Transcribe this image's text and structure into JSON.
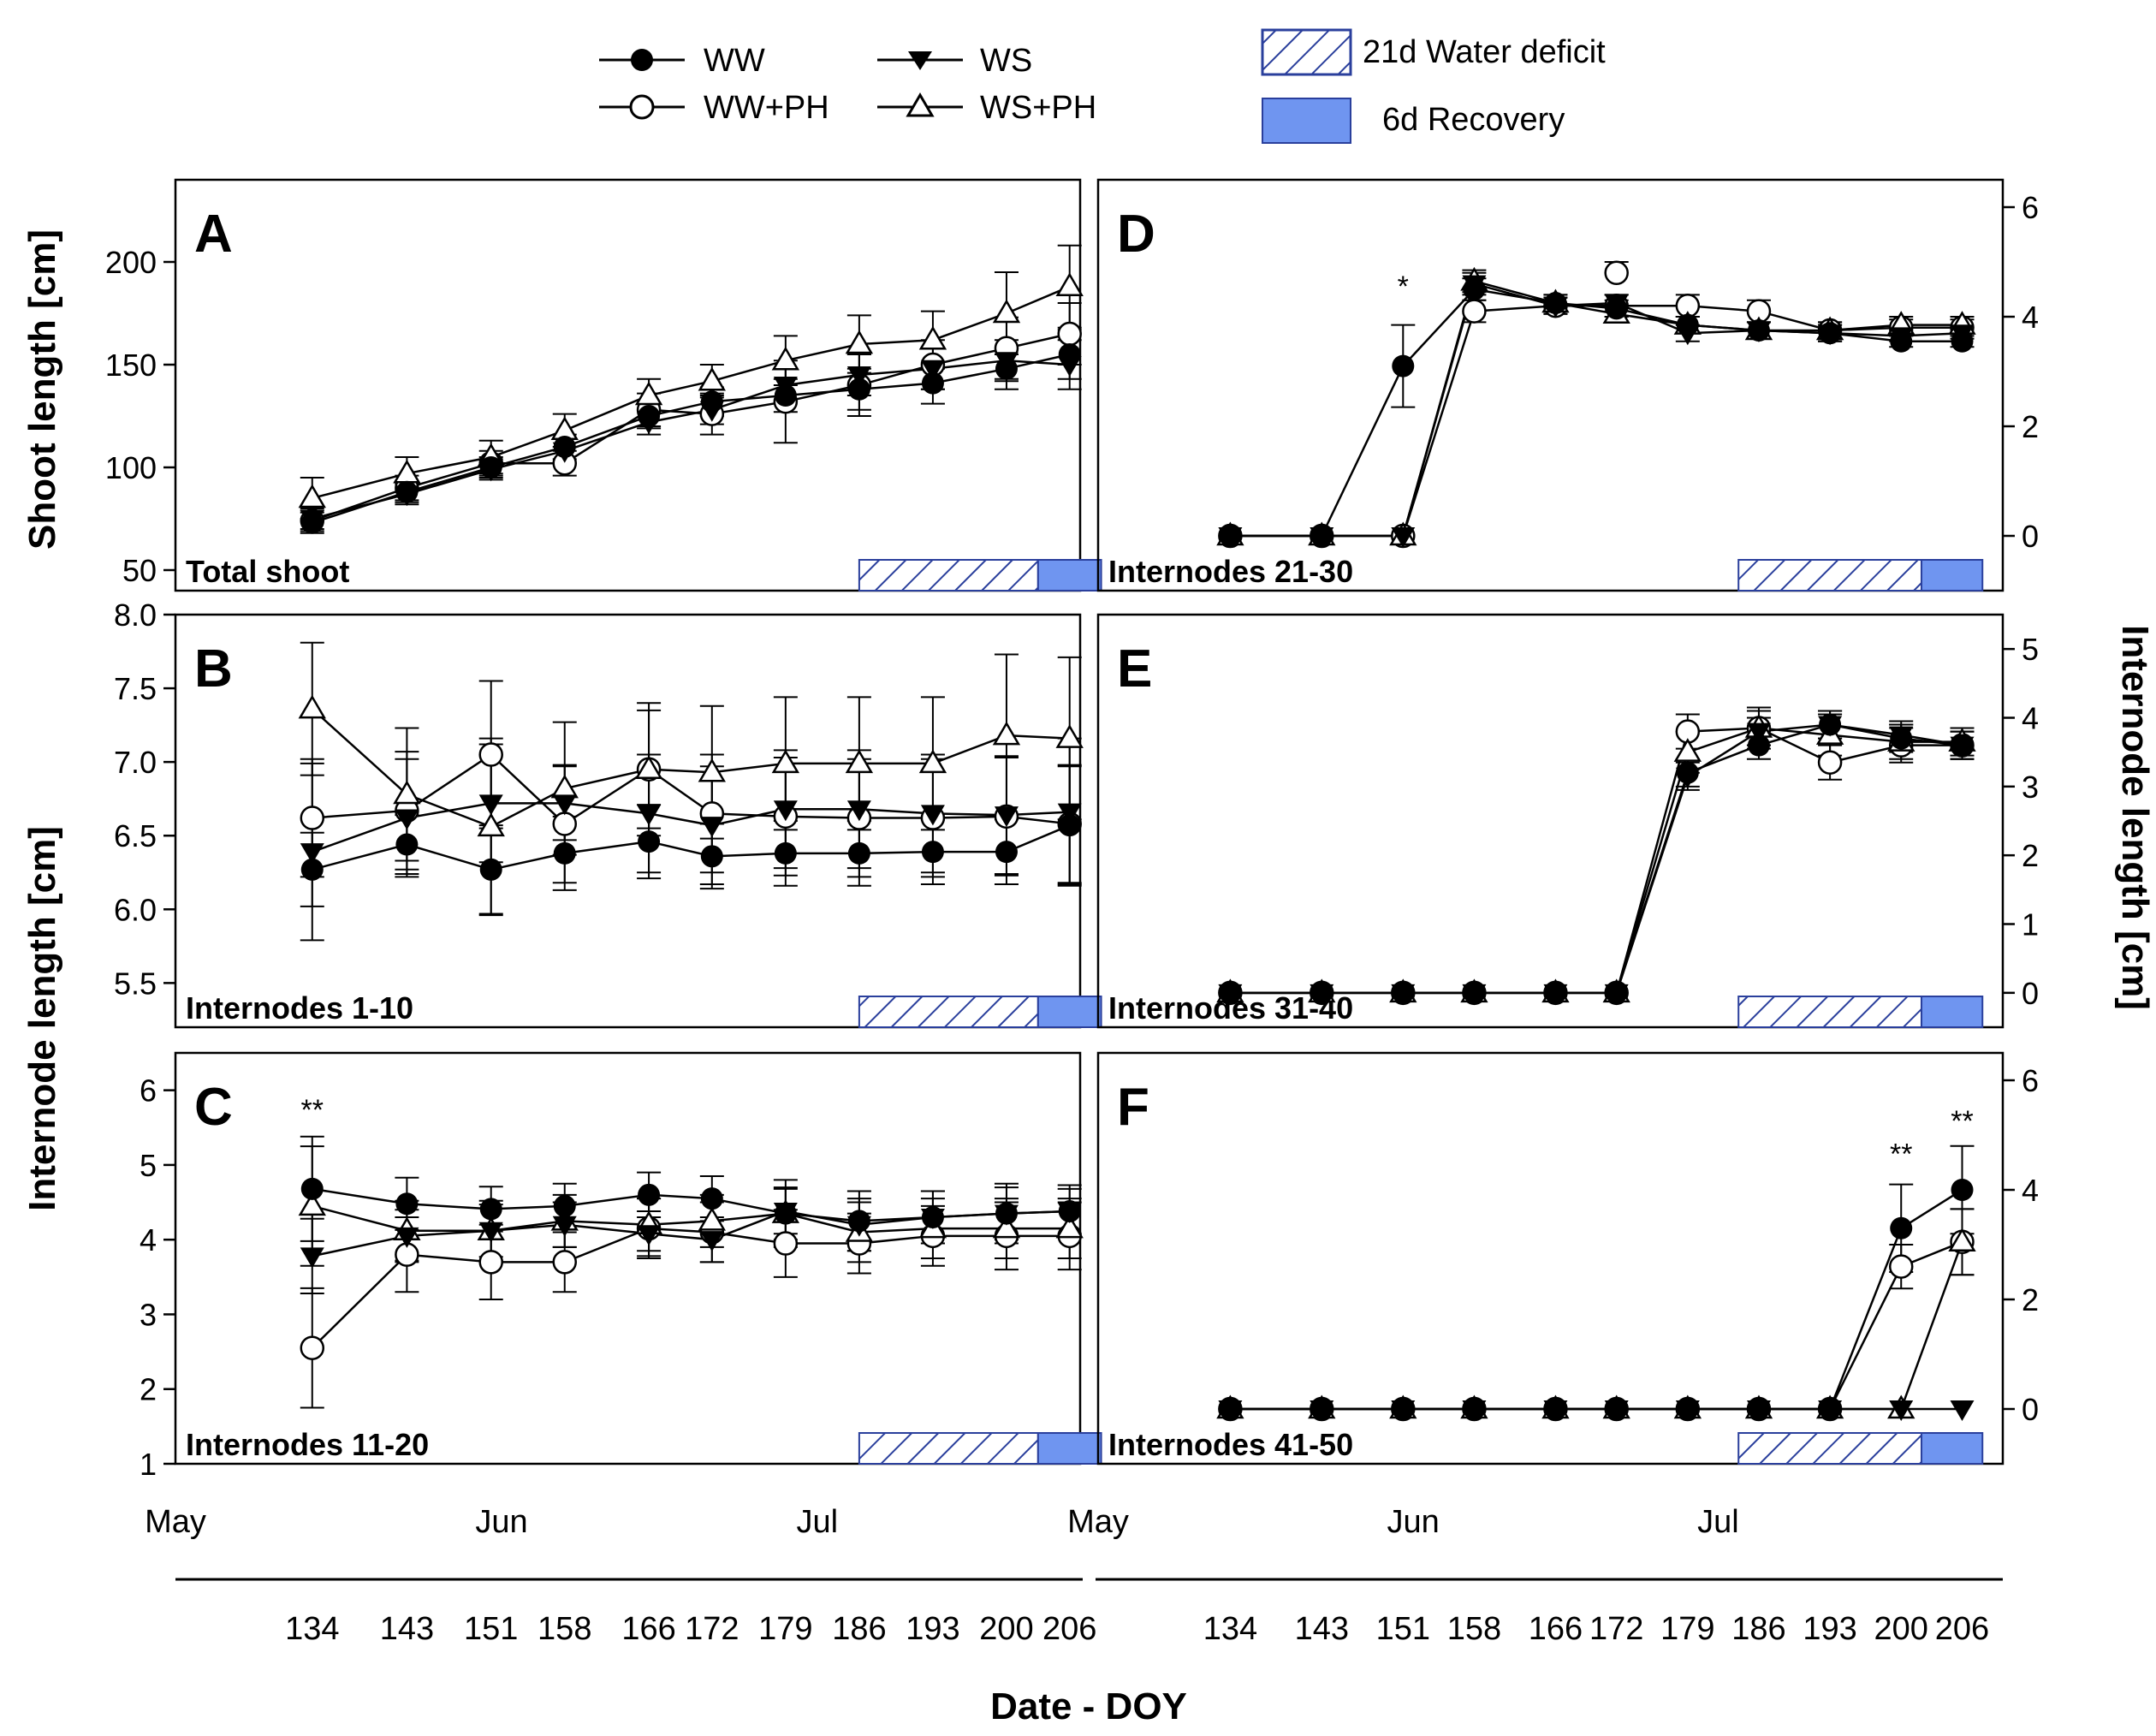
{
  "figure": {
    "xlabel": "Date - DOY",
    "left_ylabel_top": "Shoot length [cm]",
    "left_ylabel_bottom": "Internode length [cm]",
    "right_ylabel": "Internode length [cm]"
  },
  "legend": {
    "series": [
      {
        "name": "WW",
        "marker": "filled-circle"
      },
      {
        "name": "WS",
        "marker": "filled-triangle-down"
      },
      {
        "name": "WW+PH",
        "marker": "open-circle"
      },
      {
        "name": "WS+PH",
        "marker": "open-triangle-up"
      }
    ],
    "periods": [
      {
        "name": "21d Water deficit",
        "style": "hatched"
      },
      {
        "name": "6d Recovery",
        "style": "solid",
        "color": "#6f95f0"
      }
    ]
  },
  "colors": {
    "recovery": "#6f95f0",
    "hatch": "#2a3f9c",
    "line": "#000000"
  },
  "chart_data": [
    {
      "type": "line",
      "panel": "A",
      "subtitle": "Total shoot",
      "axis_side": "left",
      "ylim": [
        40,
        240
      ],
      "yticks": [
        50,
        100,
        150,
        200
      ],
      "doy": [
        134,
        143,
        151,
        158,
        166,
        172,
        179,
        186,
        193,
        200,
        206
      ],
      "series": [
        {
          "name": "WW",
          "values": [
            73,
            88,
            100,
            110,
            125,
            132,
            135,
            138,
            141,
            148,
            155
          ],
          "err": [
            5,
            5,
            5,
            6,
            6,
            7,
            8,
            10,
            10,
            10,
            12
          ]
        },
        {
          "name": "WS",
          "values": [
            75,
            87,
            99,
            108,
            122,
            128,
            140,
            145,
            148,
            152,
            150
          ],
          "err": [
            5,
            5,
            5,
            6,
            6,
            7,
            8,
            10,
            10,
            10,
            12
          ]
        },
        {
          "name": "WW+PH",
          "values": [
            74,
            90,
            102,
            102,
            128,
            126,
            132,
            140,
            150,
            158,
            165
          ],
          "err": [
            5,
            6,
            6,
            6,
            8,
            10,
            20,
            15,
            12,
            15,
            15
          ]
        },
        {
          "name": "WS+PH",
          "values": [
            85,
            97,
            105,
            118,
            135,
            142,
            152,
            160,
            162,
            175,
            188
          ],
          "err": [
            10,
            8,
            8,
            8,
            8,
            8,
            12,
            14,
            14,
            20,
            20
          ]
        }
      ],
      "significance": [],
      "periods": {
        "water_deficit_doy": [
          186,
          203
        ],
        "recovery_doy": [
          203,
          209
        ]
      }
    },
    {
      "type": "line",
      "panel": "B",
      "subtitle": "Internodes 1-10",
      "axis_side": "left",
      "ylim": [
        5.2,
        8.0
      ],
      "yticks": [
        5.5,
        6.0,
        6.5,
        7.0,
        7.5,
        8.0
      ],
      "doy": [
        134,
        143,
        151,
        158,
        166,
        172,
        179,
        186,
        193,
        200,
        206
      ],
      "series": [
        {
          "name": "WW",
          "values": [
            6.27,
            6.44,
            6.27,
            6.38,
            6.46,
            6.36,
            6.38,
            6.38,
            6.39,
            6.39,
            6.57
          ],
          "err": [
            0.25,
            0.2,
            0.3,
            0.25,
            0.25,
            0.22,
            0.22,
            0.22,
            0.22,
            0.22,
            0.4
          ]
        },
        {
          "name": "WS",
          "values": [
            6.39,
            6.62,
            6.72,
            6.72,
            6.65,
            6.57,
            6.68,
            6.68,
            6.65,
            6.64,
            6.66
          ],
          "err": [
            0.6,
            0.4,
            0.4,
            0.25,
            0.4,
            0.4,
            0.4,
            0.4,
            0.4,
            0.4,
            0.5
          ]
        },
        {
          "name": "WW+PH",
          "values": [
            6.62,
            6.67,
            7.05,
            6.58,
            6.95,
            6.65,
            6.63,
            6.62,
            6.62,
            6.63,
            6.58
          ],
          "err": [
            0.4,
            0.4,
            0.5,
            0.4,
            0.4,
            0.4,
            0.4,
            0.4,
            0.4,
            0.4,
            0.4
          ]
        },
        {
          "name": "WS+PH",
          "values": [
            7.36,
            6.78,
            6.56,
            6.82,
            6.95,
            6.93,
            6.99,
            6.99,
            6.99,
            7.18,
            7.16
          ],
          "err": [
            0.45,
            0.45,
            0.6,
            0.45,
            0.45,
            0.45,
            0.45,
            0.45,
            0.45,
            0.55,
            0.55
          ]
        }
      ],
      "significance": [],
      "periods": {
        "water_deficit_doy": [
          186,
          203
        ],
        "recovery_doy": [
          203,
          209
        ]
      }
    },
    {
      "type": "line",
      "panel": "C",
      "subtitle": "Internodes 11-20",
      "axis_side": "left",
      "ylim": [
        1,
        6.5
      ],
      "yticks": [
        1,
        2,
        3,
        4,
        5,
        6
      ],
      "doy": [
        134,
        143,
        151,
        158,
        166,
        172,
        179,
        186,
        193,
        200,
        206
      ],
      "series": [
        {
          "name": "WW",
          "values": [
            4.68,
            4.48,
            4.41,
            4.45,
            4.6,
            4.55,
            4.35,
            4.25,
            4.3,
            4.35,
            4.38
          ],
          "err": [
            0.7,
            0.35,
            0.3,
            0.3,
            0.3,
            0.3,
            0.35,
            0.4,
            0.35,
            0.35,
            0.3
          ]
        },
        {
          "name": "WS",
          "values": [
            3.78,
            4.05,
            4.12,
            4.2,
            4.08,
            4.0,
            4.38,
            4.2,
            4.3,
            4.35,
            4.38
          ],
          "err": [
            0.5,
            0.35,
            0.35,
            0.3,
            0.3,
            0.3,
            0.3,
            0.35,
            0.35,
            0.4,
            0.35
          ]
        },
        {
          "name": "WW+PH",
          "values": [
            2.55,
            3.8,
            3.7,
            3.7,
            4.15,
            4.1,
            3.95,
            3.95,
            4.05,
            4.05,
            4.05
          ],
          "err": [
            0.8,
            0.5,
            0.5,
            0.4,
            0.4,
            0.4,
            0.45,
            0.4,
            0.4,
            0.45,
            0.45
          ]
        },
        {
          "name": "WS+PH",
          "values": [
            4.45,
            4.12,
            4.12,
            4.25,
            4.2,
            4.25,
            4.35,
            4.1,
            4.15,
            4.15,
            4.15
          ],
          "err": [
            0.8,
            0.4,
            0.4,
            0.35,
            0.35,
            0.35,
            0.45,
            0.4,
            0.4,
            0.4,
            0.4
          ]
        }
      ],
      "significance": [
        {
          "doy": 134,
          "label": "**",
          "value": 5.7
        }
      ],
      "periods": {
        "water_deficit_doy": [
          186,
          203
        ],
        "recovery_doy": [
          203,
          209
        ]
      }
    },
    {
      "type": "line",
      "panel": "D",
      "subtitle": "Internodes 21-30",
      "axis_side": "right",
      "ylim": [
        -1,
        6.5
      ],
      "yticks": [
        0,
        2,
        4,
        6
      ],
      "doy": [
        134,
        143,
        151,
        158,
        166,
        172,
        179,
        186,
        193,
        200,
        206
      ],
      "series": [
        {
          "name": "WW",
          "values": [
            0,
            0,
            3.1,
            4.5,
            4.25,
            4.15,
            3.85,
            3.75,
            3.7,
            3.55,
            3.55
          ],
          "err": [
            0,
            0,
            0.75,
            0.2,
            0.15,
            0.15,
            0.15,
            0.15,
            0.15,
            0.1,
            0.1
          ]
        },
        {
          "name": "WS",
          "values": [
            0,
            0,
            0,
            4.6,
            4.2,
            4.25,
            3.7,
            3.75,
            3.7,
            3.65,
            3.7
          ],
          "err": [
            0,
            0,
            0,
            0.2,
            0.15,
            0.15,
            0.15,
            0.15,
            0.15,
            0.1,
            0.1
          ]
        },
        {
          "name": "WW+PH",
          "values": [
            0,
            0,
            0,
            4.1,
            4.2,
            4.2,
            4.2,
            4.1,
            3.75,
            3.8,
            3.8
          ],
          "err": [
            0,
            0,
            0,
            0.2,
            0.15,
            0.2,
            0.2,
            0.2,
            0.15,
            0.15,
            0.15
          ]
        },
        {
          "name": "WS+PH",
          "values": [
            0,
            0,
            0,
            4.65,
            4.25,
            4.05,
            3.85,
            3.75,
            3.75,
            3.85,
            3.85
          ],
          "err": [
            0,
            0,
            0,
            0.2,
            0.15,
            0.15,
            0.15,
            0.15,
            0.15,
            0.15,
            0.15
          ]
        }
      ],
      "extra_points": [
        {
          "series": "WW+PH",
          "doy": 172,
          "value": 4.8,
          "err": 0.2
        }
      ],
      "significance": [
        {
          "doy": 151,
          "label": "*",
          "value": 4.5
        }
      ],
      "periods": {
        "water_deficit_doy": [
          184,
          202
        ],
        "recovery_doy": [
          202,
          208
        ]
      }
    },
    {
      "type": "line",
      "panel": "E",
      "subtitle": "Internodes 31-40",
      "axis_side": "right",
      "ylim": [
        -0.5,
        5.5
      ],
      "yticks": [
        0,
        1,
        2,
        3,
        4,
        5
      ],
      "doy": [
        134,
        143,
        151,
        158,
        166,
        172,
        179,
        186,
        193,
        200,
        206
      ],
      "series": [
        {
          "name": "WW",
          "values": [
            0,
            0,
            0,
            0,
            0,
            0,
            3.2,
            3.6,
            3.9,
            3.7,
            3.6
          ],
          "err": [
            0,
            0,
            0,
            0,
            0,
            0,
            0.2,
            0.2,
            0.2,
            0.2,
            0.2
          ]
        },
        {
          "name": "WS",
          "values": [
            0,
            0,
            0,
            0,
            0,
            0,
            3.15,
            3.8,
            3.9,
            3.75,
            3.6
          ],
          "err": [
            0,
            0,
            0,
            0,
            0,
            0,
            0.2,
            0.2,
            0.2,
            0.2,
            0.2
          ]
        },
        {
          "name": "WW+PH",
          "values": [
            0,
            0,
            0,
            0,
            0,
            0,
            3.8,
            3.85,
            3.35,
            3.6,
            3.6
          ],
          "err": [
            0,
            0,
            0,
            0,
            0,
            0,
            0.25,
            0.25,
            0.25,
            0.25,
            0.2
          ]
        },
        {
          "name": "WS+PH",
          "values": [
            0,
            0,
            0,
            0,
            0,
            0,
            3.5,
            3.85,
            3.75,
            3.65,
            3.65
          ],
          "err": [
            0,
            0,
            0,
            0,
            0,
            0,
            0.3,
            0.3,
            0.3,
            0.25,
            0.2
          ]
        }
      ],
      "significance": [],
      "periods": {
        "water_deficit_doy": [
          184,
          202
        ],
        "recovery_doy": [
          202,
          208
        ]
      }
    },
    {
      "type": "line",
      "panel": "F",
      "subtitle": "Internodes 41-50",
      "axis_side": "right",
      "ylim": [
        -1,
        6.5
      ],
      "yticks": [
        0,
        2,
        4,
        6
      ],
      "doy": [
        134,
        143,
        151,
        158,
        166,
        172,
        179,
        186,
        193,
        200,
        206
      ],
      "series": [
        {
          "name": "WW",
          "values": [
            0,
            0,
            0,
            0,
            0,
            0,
            0,
            0,
            0,
            3.3,
            4.0
          ],
          "err": [
            0,
            0,
            0,
            0,
            0,
            0,
            0,
            0,
            0,
            0.8,
            0.8
          ]
        },
        {
          "name": "WS",
          "values": [
            0,
            0,
            0,
            0,
            0,
            0,
            0,
            0,
            0,
            0,
            0
          ],
          "err": [
            0,
            0,
            0,
            0,
            0,
            0,
            0,
            0,
            0,
            0,
            0
          ]
        },
        {
          "name": "WW+PH",
          "values": [
            0,
            0,
            0,
            0,
            0,
            0,
            0,
            0,
            0,
            2.6,
            3.05
          ],
          "err": [
            0,
            0,
            0,
            0,
            0,
            0,
            0,
            0,
            0,
            0.4,
            0.6
          ]
        },
        {
          "name": "WS+PH",
          "values": [
            0,
            0,
            0,
            0,
            0,
            0,
            0,
            0,
            0,
            0,
            3.05
          ],
          "err": [
            0,
            0,
            0,
            0,
            0,
            0,
            0,
            0,
            0,
            0,
            0.6
          ]
        }
      ],
      "significance": [
        {
          "doy": 200,
          "label": "**",
          "value": 4.6
        },
        {
          "doy": 206,
          "label": "**",
          "value": 5.2
        }
      ],
      "periods": {
        "water_deficit_doy": [
          184,
          202
        ],
        "recovery_doy": [
          202,
          208
        ]
      }
    }
  ],
  "date_axis": {
    "left": {
      "doy_range": [
        121,
        207
      ],
      "months": [
        {
          "label": "May",
          "doy": 121
        },
        {
          "label": "Jun",
          "doy": 152
        },
        {
          "label": "Jul",
          "doy": 182
        }
      ]
    },
    "right": {
      "doy_range": [
        121,
        210
      ],
      "months": [
        {
          "label": "May",
          "doy": 121
        },
        {
          "label": "Jun",
          "doy": 152
        },
        {
          "label": "Jul",
          "doy": 182
        }
      ]
    },
    "doy_labels": [
      "134",
      "143",
      "151",
      "158",
      "166",
      "172",
      "179",
      "186",
      "193",
      "200",
      "206"
    ]
  }
}
